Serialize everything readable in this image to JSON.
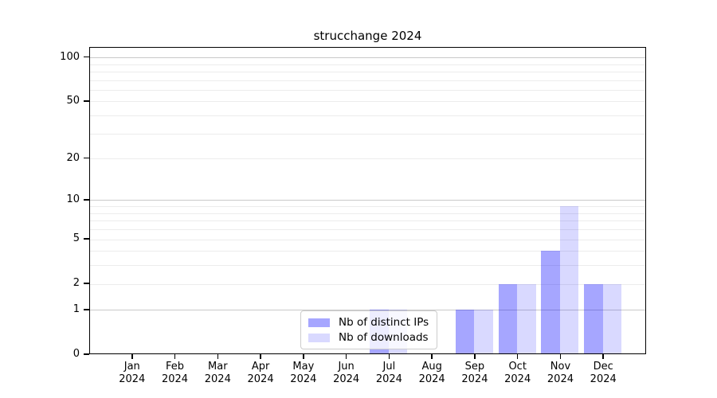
{
  "figure": {
    "title": "strucchange 2024"
  },
  "legend": {
    "items": [
      {
        "label": "Nb of distinct IPs",
        "color": "rgba(0,0,255,0.35)"
      },
      {
        "label": "Nb of downloads",
        "color": "rgba(0,0,255,0.15)"
      }
    ]
  },
  "chart_data": {
    "type": "bar",
    "title": "strucchange 2024",
    "categories": [
      "Jan 2024",
      "Feb 2024",
      "Mar 2024",
      "Apr 2024",
      "May 2024",
      "Jun 2024",
      "Jul 2024",
      "Aug 2024",
      "Sep 2024",
      "Oct 2024",
      "Nov 2024",
      "Dec 2024"
    ],
    "series": [
      {
        "name": "Nb of distinct IPs",
        "color": "rgba(0,0,255,0.35)",
        "values": [
          0,
          0,
          0,
          0,
          0,
          0,
          1,
          0,
          1,
          2,
          4,
          2
        ]
      },
      {
        "name": "Nb of downloads",
        "color": "rgba(0,0,255,0.15)",
        "values": [
          0,
          0,
          0,
          0,
          0,
          0,
          1,
          0,
          1,
          2,
          9,
          2
        ]
      }
    ],
    "xlabel": "",
    "ylabel": "",
    "yscale": "log1p",
    "ylim": [
      0,
      117
    ],
    "yticks": [
      0,
      1,
      2,
      5,
      10,
      20,
      50,
      100
    ],
    "major_gridlines": [
      1,
      10,
      100
    ],
    "minor_gridlines": [
      2,
      3,
      4,
      5,
      6,
      7,
      8,
      9,
      20,
      30,
      40,
      50,
      60,
      70,
      80,
      90
    ],
    "grid": true,
    "legend_position": "lower center"
  },
  "colors": {
    "major_grid": "#c9c9c9",
    "minor_grid": "#ececec",
    "axis": "#000000",
    "background": "#ffffff"
  }
}
